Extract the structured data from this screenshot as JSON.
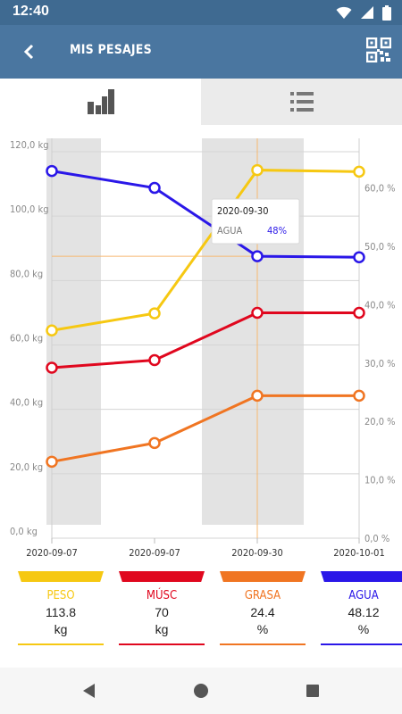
{
  "status_bar": {
    "time": "12:40"
  },
  "app_bar": {
    "title": "MIS PESAJES"
  },
  "tabs": [
    {
      "name": "chart",
      "icon": "bar-chart-icon",
      "selected": true
    },
    {
      "name": "list",
      "icon": "list-icon",
      "selected": false
    }
  ],
  "chart_data": {
    "type": "line",
    "x": [
      "2020-09-07",
      "2020-09-07",
      "2020-09-30",
      "2020-10-01"
    ],
    "left_axis": {
      "ticks": [
        "0,0 kg",
        "20,0 kg",
        "40,0 kg",
        "60,0 kg",
        "80,0 kg",
        "100,0 kg",
        "120,0 kg"
      ],
      "ylim": [
        0,
        120
      ]
    },
    "right_axis": {
      "ticks": [
        "0,0 %",
        "10,0 %",
        "20,0 %",
        "30,0 %",
        "40,0 %",
        "50,0 %",
        "60,0 %"
      ],
      "ylim": [
        0,
        66.2
      ]
    },
    "series": [
      {
        "name": "PESO",
        "axis": "left",
        "color": "#f6c812",
        "values": [
          64.5,
          69.8,
          114.3,
          113.8
        ]
      },
      {
        "name": "MÚSC",
        "axis": "right",
        "color": "#e0071e",
        "values": [
          29.2,
          30.5,
          38.6,
          38.6
        ]
      },
      {
        "name": "GRASA",
        "axis": "right",
        "color": "#f07522",
        "values": [
          13.1,
          16.3,
          24.4,
          24.4
        ]
      },
      {
        "name": "AGUA",
        "axis": "right",
        "color": "#2a17e8",
        "values": [
          62.9,
          60.0,
          48.3,
          48.12
        ]
      }
    ],
    "tooltip": {
      "date": "2020-09-30",
      "label": "AGUA",
      "value": "48%",
      "point_index": 2
    },
    "grid": true
  },
  "legend": [
    {
      "name": "PESO",
      "value": "113.8",
      "unit": "kg",
      "color": "#f6c812"
    },
    {
      "name": "MÚSC",
      "value": "70",
      "unit": "kg",
      "color": "#e0071e"
    },
    {
      "name": "GRASA",
      "value": "24.4",
      "unit": "%",
      "color": "#f07522"
    },
    {
      "name": "AGUA",
      "value": "48.12",
      "unit": "%",
      "color": "#2a17e8"
    }
  ]
}
